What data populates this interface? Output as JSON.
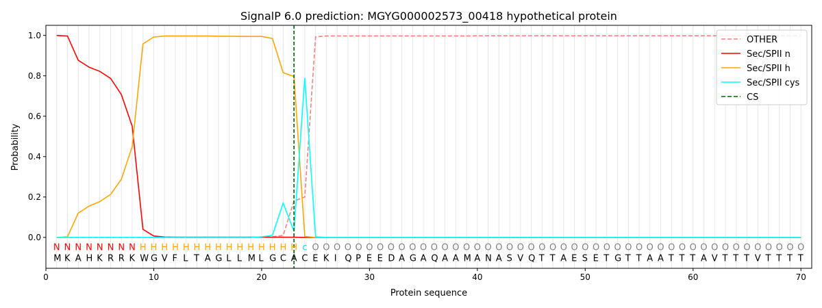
{
  "chart_data": {
    "type": "line",
    "title": "SignalP 6.0 prediction: MGYG000002573_00418 hypothetical protein",
    "xlabel": "Protein sequence",
    "ylabel": "Probability",
    "xlim": [
      0,
      71
    ],
    "ylim": [
      -0.153,
      1.05
    ],
    "xticks": [
      0,
      10,
      20,
      30,
      40,
      50,
      60,
      70
    ],
    "yticks": [
      0.0,
      0.2,
      0.4,
      0.6,
      0.8,
      1.0
    ],
    "ytick_labels": [
      "0.0",
      "0.2",
      "0.4",
      "0.6",
      "0.8",
      "1.0"
    ],
    "legend_position": "top-right",
    "sequence": "MKAHKRRKWGVFLTAGLLMLGCACEKIQPEEDAGAQAAMANASVQTTAESETGTTAATTTAVTTTVTTTT",
    "labels": "NNNNNNNNHHHHHHHHHHHHHHHCOOOOOOOOOOOOOOOOOOOOOOOOOOOOOOOOOOOOOOOOOOOOOO",
    "label_colors": {
      "N": "#ff0000",
      "H": "#ffa500",
      "C": "#00e5e5",
      "O": "#808080"
    },
    "cs_position": 23,
    "series": [
      {
        "name": "OTHER",
        "color": "#f08080",
        "dash": true,
        "values": [
          0,
          0,
          0,
          0,
          0,
          0,
          0,
          0,
          0,
          0,
          0,
          0,
          0,
          0,
          0,
          0,
          0,
          0,
          0,
          0.001,
          0.003,
          0.01,
          0.18,
          0.2,
          0.993,
          0.997,
          0.997,
          0.997,
          0.997,
          0.997,
          0.997,
          0.997,
          0.997,
          0.997,
          0.997,
          0.997,
          0.997,
          0.997,
          0.997,
          0.998,
          0.998,
          0.998,
          0.998,
          0.998,
          0.998,
          0.998,
          0.998,
          0.998,
          0.998,
          0.998,
          0.998,
          0.998,
          0.998,
          0.998,
          0.998,
          0.998,
          0.998,
          0.998,
          0.998,
          0.998,
          0.998,
          0.998,
          0.998,
          0.998,
          0.998,
          0.998,
          0.998,
          0.998,
          0.998,
          0.998
        ]
      },
      {
        "name": "Sec/SPII n",
        "color": "#ff0000",
        "dash": false,
        "values": [
          1.0,
          0.997,
          0.877,
          0.843,
          0.822,
          0.787,
          0.707,
          0.55,
          0.04,
          0.007,
          0.002,
          0.001,
          0.001,
          0.001,
          0.001,
          0.001,
          0.001,
          0.001,
          0.001,
          0.001,
          0.001,
          0.001,
          0.001,
          0,
          0,
          0,
          0,
          0,
          0,
          0,
          0,
          0,
          0,
          0,
          0,
          0,
          0,
          0,
          0,
          0,
          0,
          0,
          0,
          0,
          0,
          0,
          0,
          0,
          0,
          0,
          0,
          0,
          0,
          0,
          0,
          0,
          0,
          0,
          0,
          0,
          0,
          0,
          0,
          0,
          0,
          0,
          0,
          0,
          0,
          0
        ]
      },
      {
        "name": "Sec/SPII h",
        "color": "#ffa500",
        "dash": false,
        "values": [
          0,
          0.003,
          0.12,
          0.155,
          0.177,
          0.213,
          0.288,
          0.45,
          0.958,
          0.992,
          0.997,
          0.997,
          0.997,
          0.997,
          0.997,
          0.996,
          0.996,
          0.995,
          0.995,
          0.995,
          0.985,
          0.815,
          0.797,
          0.005,
          0,
          0,
          0,
          0,
          0,
          0,
          0,
          0,
          0,
          0,
          0,
          0,
          0,
          0,
          0,
          0,
          0,
          0,
          0,
          0,
          0,
          0,
          0,
          0,
          0,
          0,
          0,
          0,
          0,
          0,
          0,
          0,
          0,
          0,
          0,
          0,
          0,
          0,
          0,
          0,
          0,
          0,
          0,
          0,
          0,
          0
        ]
      },
      {
        "name": "Sec/SPII cys",
        "color": "#00ffff",
        "dash": false,
        "values": [
          0,
          0,
          0,
          0,
          0,
          0,
          0,
          0,
          0,
          0,
          0,
          0,
          0,
          0,
          0,
          0,
          0,
          0,
          0,
          0.003,
          0.01,
          0.17,
          0.03,
          0.79,
          0.003,
          0,
          0,
          0,
          0,
          0,
          0,
          0,
          0,
          0,
          0,
          0,
          0,
          0,
          0,
          0,
          0,
          0,
          0,
          0,
          0,
          0,
          0,
          0,
          0,
          0,
          0,
          0,
          0,
          0,
          0,
          0,
          0,
          0,
          0,
          0,
          0,
          0,
          0,
          0,
          0,
          0,
          0,
          0,
          0,
          0
        ]
      },
      {
        "name": "CS",
        "color": "#006400",
        "dash": true,
        "values": []
      }
    ]
  }
}
